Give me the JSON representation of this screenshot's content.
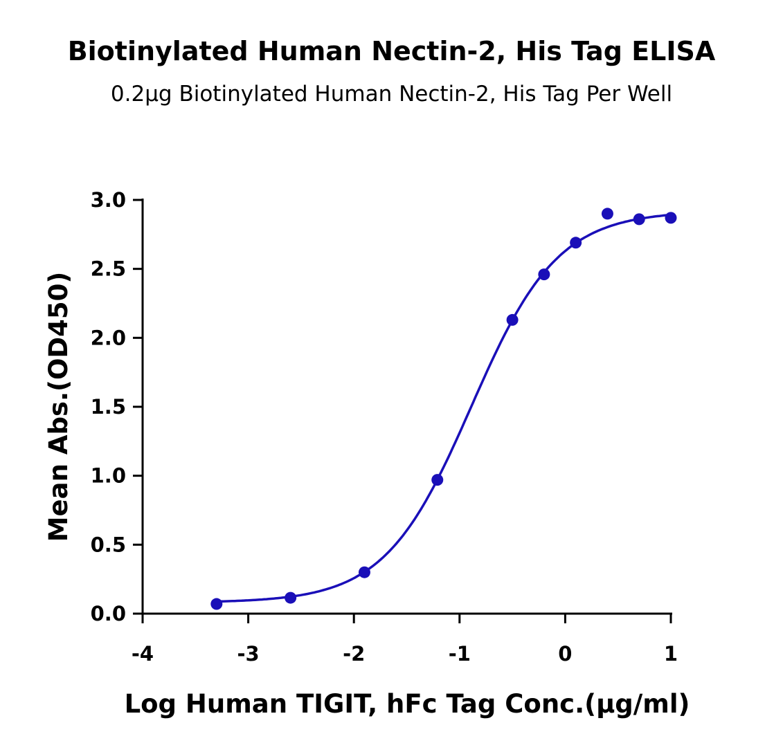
{
  "chart_data": {
    "type": "scatter",
    "title": "Biotinylated Human Nectin-2, His Tag ELISA",
    "subtitle": "0.2μg Biotinylated Human Nectin-2, His Tag Per Well",
    "xlabel": "Log Human TIGIT, hFc Tag Conc.(μg/ml)",
    "ylabel": "Mean Abs.(OD450)",
    "xlim": [
      -4,
      1
    ],
    "ylim": [
      0,
      3.0
    ],
    "xticks": [
      "-4",
      "-3",
      "-2",
      "-1",
      "0",
      "1"
    ],
    "yticks": [
      "0.0",
      "0.5",
      "1.0",
      "1.5",
      "2.0",
      "2.5",
      "3.0"
    ],
    "grid": false,
    "color": "#1a0fb8",
    "series": [
      {
        "name": "Mean Abs.",
        "x": [
          -3.3,
          -2.6,
          -1.9,
          -1.21,
          -0.5,
          -0.2,
          0.1,
          0.4,
          0.7,
          1.0
        ],
        "y": [
          0.07,
          0.115,
          0.3,
          0.97,
          2.13,
          2.46,
          2.69,
          2.9,
          2.86,
          2.87
        ]
      }
    ],
    "fit": {
      "model": "4PL",
      "bottom": 0.08,
      "top": 2.92,
      "logEC50": -0.89,
      "hill": 1.06
    }
  }
}
